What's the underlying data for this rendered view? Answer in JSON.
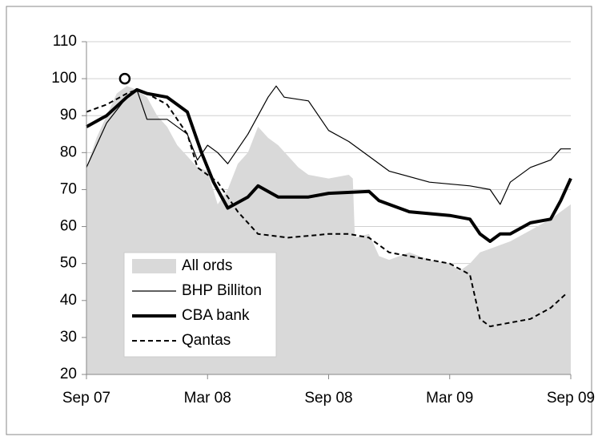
{
  "chart_data": {
    "type": "line",
    "xlim": [
      0,
      24
    ],
    "xticks": [
      {
        "value": 0,
        "label": "Sep 07"
      },
      {
        "value": 6,
        "label": "Mar 08"
      },
      {
        "value": 12,
        "label": "Sep 08"
      },
      {
        "value": 18,
        "label": "Mar 09"
      },
      {
        "value": 24,
        "label": "Sep 09"
      }
    ],
    "ylim": [
      20,
      110
    ],
    "yticks": [
      20,
      30,
      40,
      50,
      60,
      70,
      80,
      90,
      100,
      110
    ],
    "grid": true,
    "legend": "lower-left",
    "series": [
      {
        "name": "All ords",
        "color": "#d9d9d9",
        "style": "area",
        "width": 0,
        "x": [
          0,
          0.5,
          1,
          1.5,
          2,
          2.5,
          3,
          3.5,
          4,
          4.5,
          5,
          5.5,
          6,
          6.5,
          7,
          7.5,
          8,
          8.5,
          9,
          9.5,
          10,
          10.5,
          11,
          12,
          13,
          13.2,
          13.3,
          14,
          14.5,
          15,
          16,
          17,
          18,
          18.5,
          19,
          19.5,
          20,
          21,
          22,
          23,
          24
        ],
        "values": [
          76,
          84,
          90,
          96,
          98,
          97,
          95,
          90,
          87,
          82,
          79,
          76,
          75,
          66,
          70,
          77,
          80,
          87,
          84,
          82,
          79,
          76,
          74,
          73,
          74,
          73,
          57,
          58,
          52,
          51,
          53,
          51,
          50,
          48,
          50,
          53,
          54,
          56,
          59,
          62,
          66
        ]
      },
      {
        "name": "BHP Billiton",
        "color": "#000000",
        "style": "solid",
        "width": 1.2,
        "x": [
          0,
          1,
          2,
          2.5,
          3,
          4,
          5,
          5.5,
          6,
          6.5,
          7,
          8,
          9,
          9.4,
          9.8,
          11,
          12,
          13,
          14,
          15,
          17,
          19,
          20,
          20.5,
          21,
          22,
          23,
          23.5,
          24
        ],
        "values": [
          76,
          88,
          95,
          97,
          89,
          89,
          85,
          78,
          82,
          80,
          77,
          85,
          95,
          98,
          95,
          94,
          86,
          83,
          79,
          75,
          72,
          71,
          70,
          66,
          72,
          76,
          78,
          81,
          81
        ]
      },
      {
        "name": "CBA bank",
        "color": "#000000",
        "style": "solid",
        "width": 4,
        "x": [
          0,
          1,
          2,
          2.5,
          3,
          4,
          5,
          5.7,
          6.3,
          7,
          8,
          8.5,
          9.5,
          11,
          12,
          14,
          14.5,
          16,
          18,
          19,
          19.5,
          20,
          20.5,
          21,
          22,
          23,
          23.5,
          24
        ],
        "values": [
          87,
          90,
          95,
          97,
          96,
          95,
          91,
          80,
          72,
          65,
          68,
          71,
          68,
          68,
          69,
          69.5,
          67,
          64,
          63,
          62,
          58,
          56,
          58,
          58,
          61,
          62,
          67,
          73
        ]
      },
      {
        "name": "Qantas",
        "color": "#000000",
        "style": "dashed",
        "width": 2,
        "x": [
          0,
          1,
          2,
          2.5,
          3,
          4,
          5,
          5.5,
          6.5,
          7.5,
          8.5,
          10,
          12,
          13,
          14,
          15,
          17,
          18,
          19,
          19.5,
          20,
          21,
          22,
          23,
          23.8
        ],
        "values": [
          91,
          93,
          96,
          97,
          96,
          93,
          85,
          76,
          72,
          64,
          58,
          57,
          58,
          58,
          57,
          53,
          51,
          50,
          47,
          35,
          33,
          34,
          35,
          38,
          42
        ]
      }
    ],
    "marker": {
      "x": 1.9,
      "value": 100
    }
  }
}
